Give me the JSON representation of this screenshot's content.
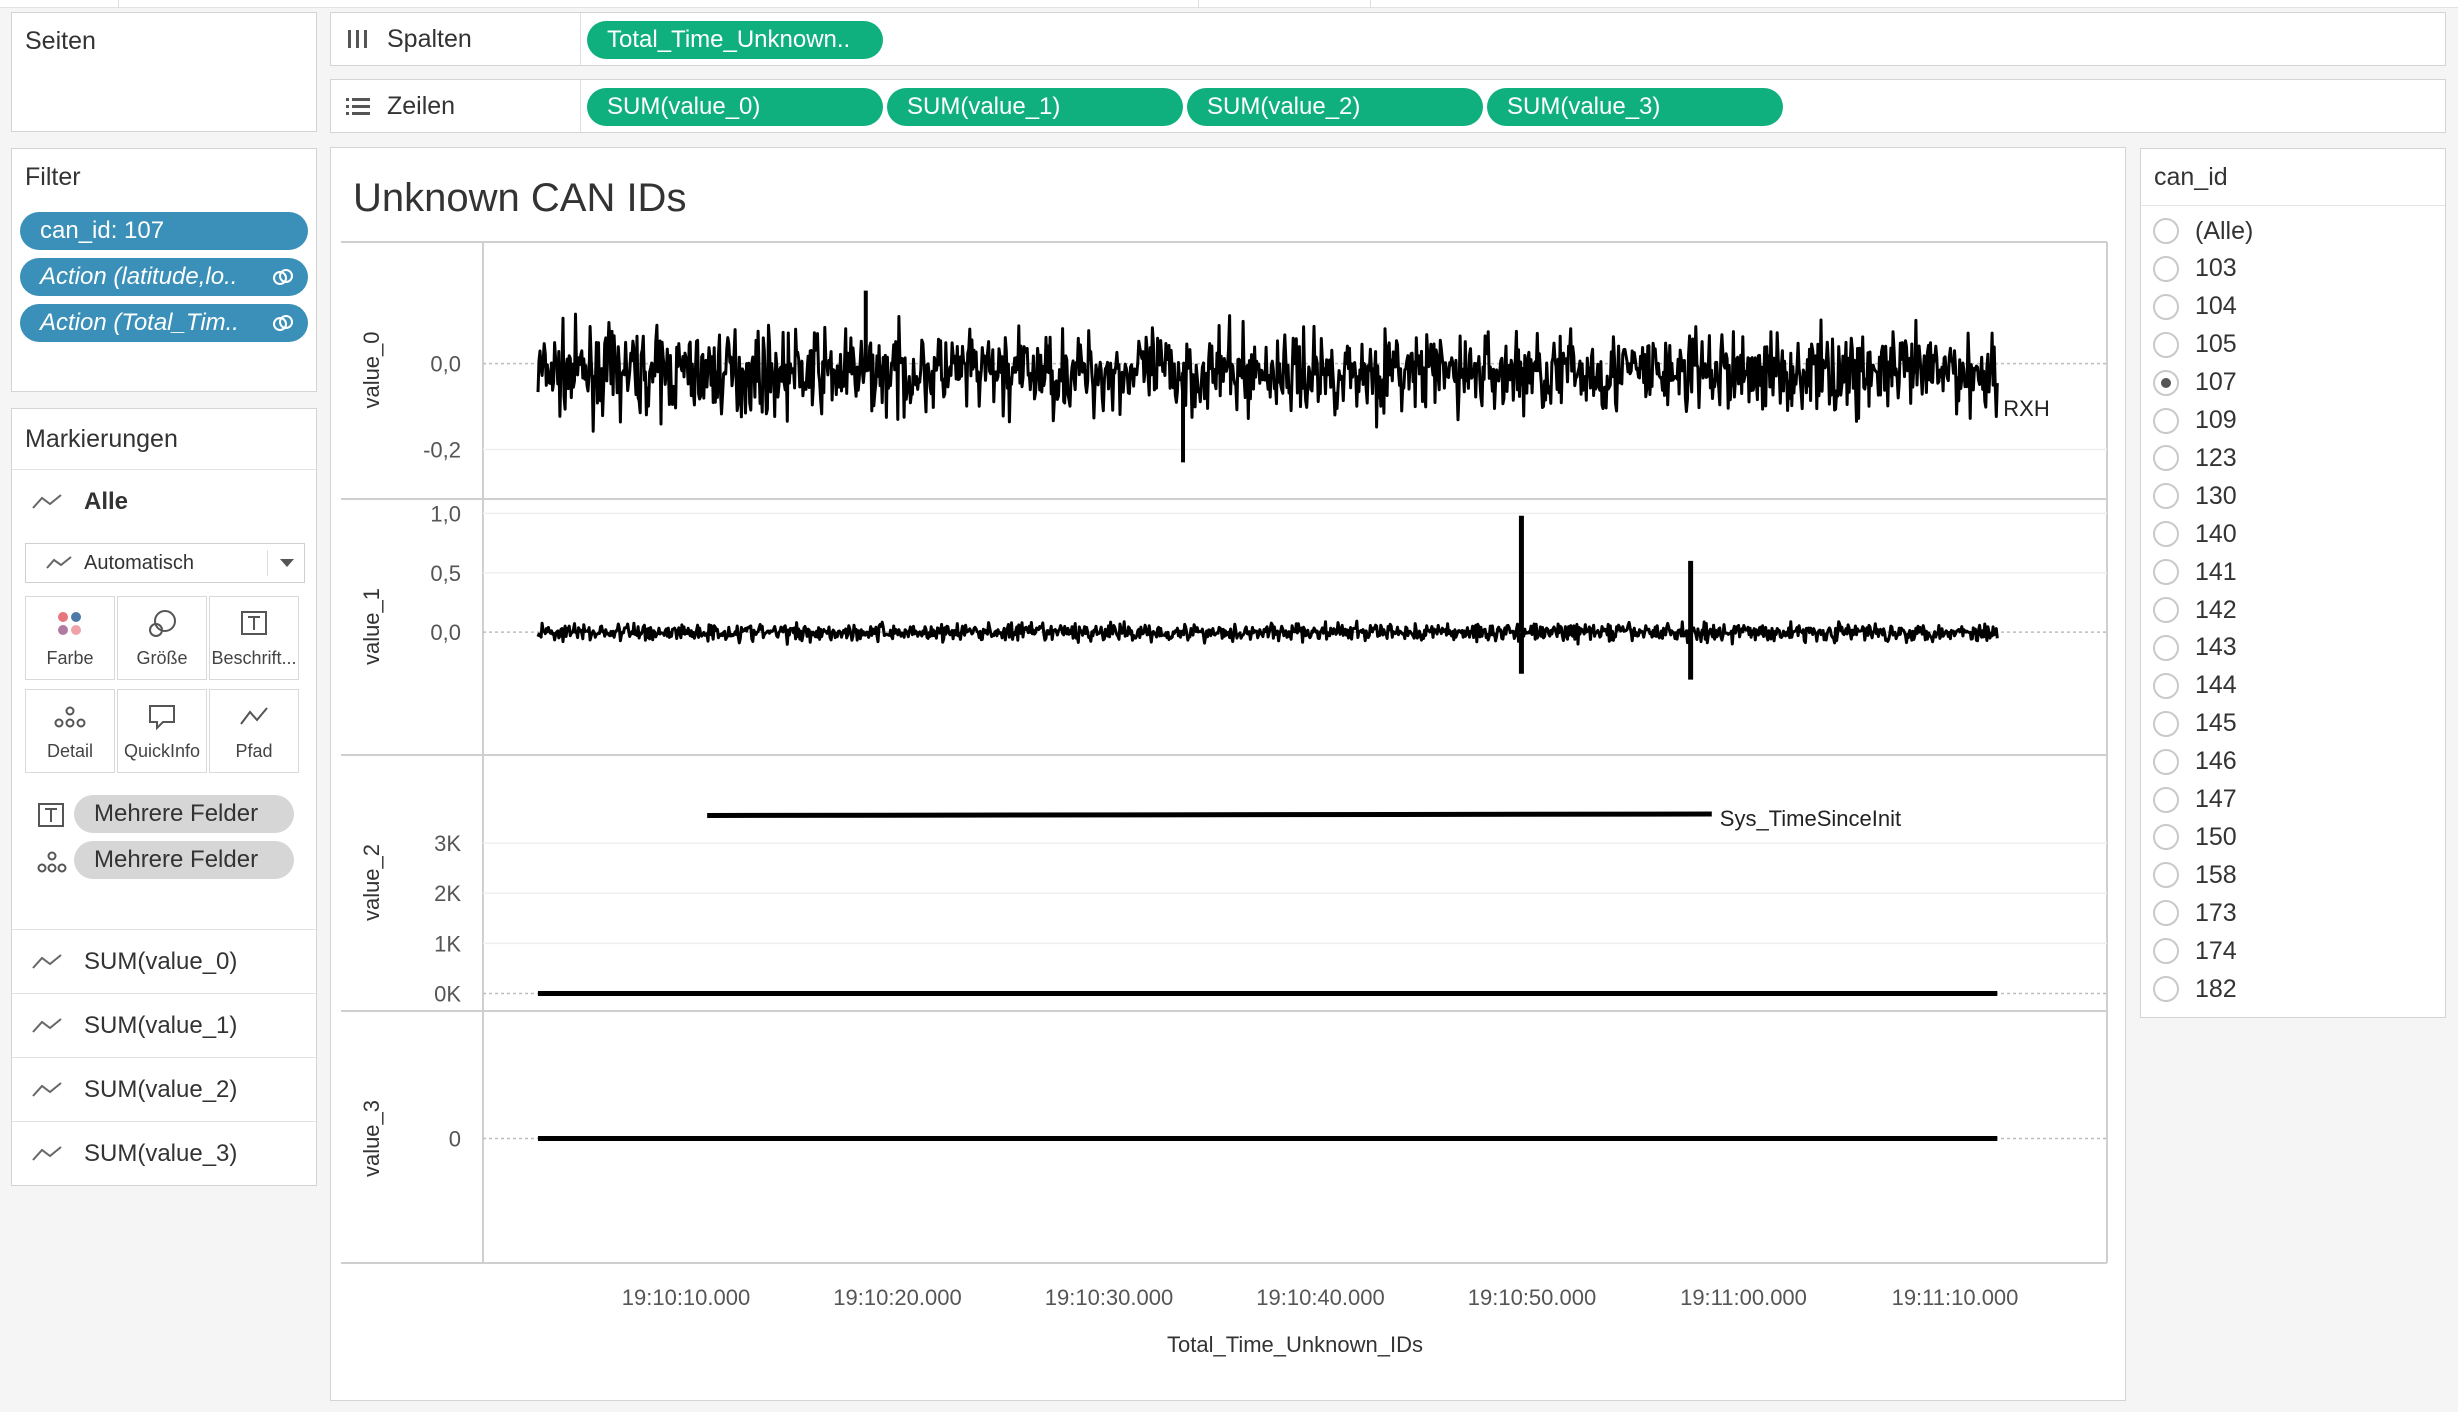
{
  "pages_shelf": {
    "title": "Seiten"
  },
  "columns_shelf": {
    "label": "Spalten",
    "pills": [
      "Total_Time_Unknown.."
    ]
  },
  "rows_shelf": {
    "label": "Zeilen",
    "pills": [
      "SUM(value_0)",
      "SUM(value_1)",
      "SUM(value_2)",
      "SUM(value_3)"
    ]
  },
  "filters": {
    "title": "Filter",
    "items": [
      "can_id: 107",
      "Action (latitude,lo..",
      "Action (Total_Tim.."
    ]
  },
  "marks": {
    "title": "Markierungen",
    "all_label": "Alle",
    "mark_type": "Automatisch",
    "cards": [
      "Farbe",
      "Größe",
      "Beschrift...",
      "Detail",
      "QuickInfo",
      "Pfad"
    ],
    "fields": [
      "Mehrere Felder",
      "Mehrere Felder"
    ],
    "measures": [
      "SUM(value_0)",
      "SUM(value_1)",
      "SUM(value_2)",
      "SUM(value_3)"
    ]
  },
  "can_id_filter": {
    "title": "can_id",
    "options": [
      "(Alle)",
      "103",
      "104",
      "105",
      "107",
      "109",
      "123",
      "130",
      "140",
      "141",
      "142",
      "143",
      "144",
      "145",
      "146",
      "147",
      "150",
      "158",
      "173",
      "174",
      "182"
    ],
    "selected": "107"
  },
  "colors": {
    "pill_green": "#10b07e",
    "filter_blue": "#3a90b8",
    "line": "#000000"
  },
  "chart_data": {
    "type": "line",
    "title": "Unknown CAN IDs",
    "xlabel": "Total_Time_Unknown_IDs",
    "x_ticks": [
      "19:10:10.000",
      "19:10:20.000",
      "19:10:30.000",
      "19:10:40.000",
      "19:10:50.000",
      "19:11:00.000",
      "19:11:10.000"
    ],
    "x_range": [
      "19:10:03",
      "19:11:12"
    ],
    "panes": [
      {
        "ylabel": "value_0",
        "yticks": [
          "0,0",
          "-0,2"
        ],
        "ylim": [
          -0.25,
          0.19
        ],
        "series_label": "RXH",
        "pattern": "noise",
        "center": -0.02,
        "amplitude": 0.1,
        "extremes": [
          -0.23,
          0.17
        ]
      },
      {
        "ylabel": "value_1",
        "yticks": [
          "1,0",
          "0,5",
          "0,0"
        ],
        "ylim": [
          -0.47,
          1.02
        ],
        "pattern": "noise_spikes",
        "center": 0.0,
        "amplitude": 0.08,
        "spikes": [
          {
            "x": "19:10:49.5",
            "y": 0.98
          },
          {
            "x": "19:10:57.5",
            "y": 0.6
          },
          {
            "x": "19:10:57.5",
            "y": -0.4
          },
          {
            "x": "19:10:49.5",
            "y": -0.35
          }
        ]
      },
      {
        "ylabel": "value_2",
        "yticks": [
          "3K",
          "2K",
          "1K",
          "0K"
        ],
        "ylim": [
          -50,
          3600
        ],
        "pattern": "flat",
        "value": 0,
        "extra_series": {
          "label": "Sys_TimeSinceInit",
          "x": [
            "19:10:11",
            "19:10:58.5"
          ],
          "y": [
            3550,
            3580
          ]
        }
      },
      {
        "ylabel": "value_3",
        "yticks": [
          "0"
        ],
        "ylim": [
          -1,
          1
        ],
        "pattern": "flat",
        "value": 0
      }
    ]
  }
}
